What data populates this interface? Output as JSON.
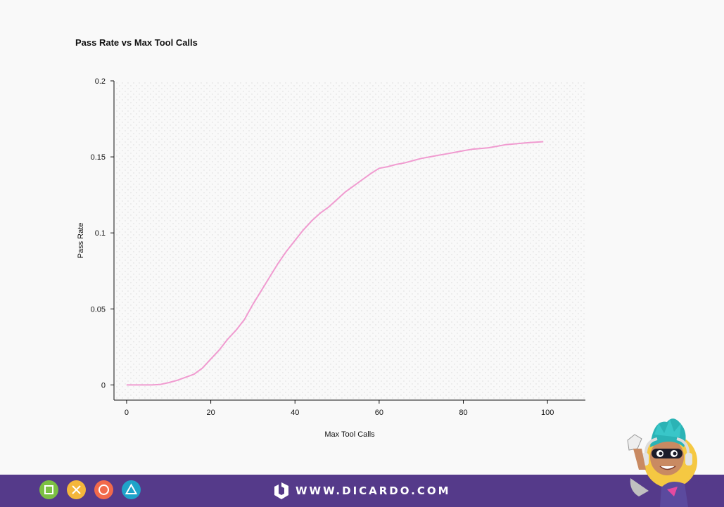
{
  "chart_data": {
    "type": "line",
    "title": "Pass Rate vs Max Tool Calls",
    "xlabel": "Max Tool Calls",
    "ylabel": "Pass Rate",
    "xlim": [
      -3,
      109
    ],
    "ylim": [
      -0.01,
      0.2
    ],
    "xticks": [
      0,
      20,
      40,
      60,
      80,
      100
    ],
    "yticks": [
      0,
      0.05,
      0.1,
      0.15,
      0.2
    ],
    "ytick_labels": [
      "0",
      "0.05",
      "0.1",
      "0.15",
      "0.2"
    ],
    "grid": false,
    "background": "dotted",
    "series": [
      {
        "color": "#f09bd0",
        "x": [
          0,
          2,
          4,
          6,
          8,
          10,
          12,
          14,
          16,
          18,
          20,
          22,
          24,
          26,
          28,
          30,
          32,
          34,
          36,
          38,
          40,
          42,
          44,
          46,
          48,
          50,
          52,
          54,
          56,
          58,
          60,
          62,
          64,
          66,
          68,
          70,
          72,
          74,
          76,
          78,
          80,
          82,
          84,
          86,
          88,
          90,
          92,
          94,
          96,
          98,
          99
        ],
        "y": [
          0,
          0,
          0,
          0,
          0.0003,
          0.0015,
          0.003,
          0.005,
          0.007,
          0.011,
          0.017,
          0.023,
          0.03,
          0.036,
          0.043,
          0.053,
          0.062,
          0.071,
          0.08,
          0.088,
          0.095,
          0.102,
          0.108,
          0.113,
          0.117,
          0.122,
          0.127,
          0.131,
          0.135,
          0.139,
          0.1425,
          0.1435,
          0.145,
          0.146,
          0.1475,
          0.149,
          0.15,
          0.151,
          0.152,
          0.153,
          0.154,
          0.155,
          0.1555,
          0.156,
          0.157,
          0.158,
          0.1585,
          0.159,
          0.1595,
          0.1598,
          0.16
        ]
      }
    ]
  },
  "footer": {
    "brand_text": "WWW.DICARDO.COM",
    "colors": {
      "bar": "#553a8a",
      "square": "#7cc043",
      "cross": "#f4b63b",
      "circle": "#f26a4b",
      "triangle": "#1fa3c9"
    },
    "icons": [
      "square-icon",
      "cross-icon",
      "circle-icon",
      "triangle-icon",
      "dicardo-logo-icon",
      "mascot"
    ]
  }
}
